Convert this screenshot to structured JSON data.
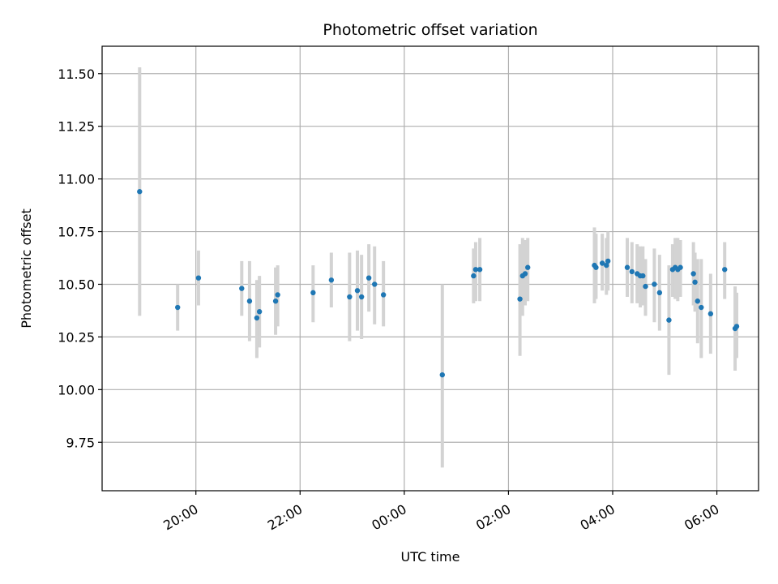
{
  "chart_data": {
    "type": "scatter",
    "title": "Photometric offset variation",
    "xlabel": "UTC time",
    "ylabel": "Photometric offset",
    "x_unit": "hours",
    "xlim": [
      -5.8,
      6.8
    ],
    "ylim": [
      9.52,
      11.63
    ],
    "x_ticks": [
      {
        "value": -4,
        "label": "20:00"
      },
      {
        "value": -2,
        "label": "22:00"
      },
      {
        "value": 0,
        "label": "00:00"
      },
      {
        "value": 2,
        "label": "02:00"
      },
      {
        "value": 4,
        "label": "04:00"
      },
      {
        "value": 6,
        "label": "06:00"
      }
    ],
    "y_ticks": [
      {
        "value": 9.75,
        "label": "9.75"
      },
      {
        "value": 10.0,
        "label": "10.00"
      },
      {
        "value": 10.25,
        "label": "10.25"
      },
      {
        "value": 10.5,
        "label": "10.50"
      },
      {
        "value": 10.75,
        "label": "10.75"
      },
      {
        "value": 11.0,
        "label": "11.00"
      },
      {
        "value": 11.25,
        "label": "11.25"
      },
      {
        "value": 11.5,
        "label": "11.50"
      }
    ],
    "grid": true,
    "point_color": "#1f77b4",
    "errorbar_color": "#d3d3d3",
    "points": [
      {
        "x": -5.08,
        "y": 10.94,
        "low": 10.35,
        "high": 11.53
      },
      {
        "x": -4.35,
        "y": 10.39,
        "low": 10.28,
        "high": 10.5
      },
      {
        "x": -3.95,
        "y": 10.53,
        "low": 10.4,
        "high": 10.66
      },
      {
        "x": -3.12,
        "y": 10.48,
        "low": 10.35,
        "high": 10.61
      },
      {
        "x": -2.97,
        "y": 10.42,
        "low": 10.23,
        "high": 10.61
      },
      {
        "x": -2.83,
        "y": 10.34,
        "low": 10.15,
        "high": 10.52
      },
      {
        "x": -2.78,
        "y": 10.37,
        "low": 10.2,
        "high": 10.54
      },
      {
        "x": -2.47,
        "y": 10.42,
        "low": 10.26,
        "high": 10.58
      },
      {
        "x": -2.43,
        "y": 10.45,
        "low": 10.3,
        "high": 10.59
      },
      {
        "x": -1.75,
        "y": 10.46,
        "low": 10.32,
        "high": 10.59
      },
      {
        "x": -1.4,
        "y": 10.52,
        "low": 10.39,
        "high": 10.65
      },
      {
        "x": -1.05,
        "y": 10.44,
        "low": 10.23,
        "high": 10.65
      },
      {
        "x": -0.9,
        "y": 10.47,
        "low": 10.28,
        "high": 10.66
      },
      {
        "x": -0.82,
        "y": 10.44,
        "low": 10.24,
        "high": 10.64
      },
      {
        "x": -0.68,
        "y": 10.53,
        "low": 10.37,
        "high": 10.69
      },
      {
        "x": -0.57,
        "y": 10.5,
        "low": 10.31,
        "high": 10.68
      },
      {
        "x": -0.4,
        "y": 10.45,
        "low": 10.3,
        "high": 10.61
      },
      {
        "x": 0.73,
        "y": 10.07,
        "low": 9.63,
        "high": 10.5
      },
      {
        "x": 1.33,
        "y": 10.54,
        "low": 10.41,
        "high": 10.67
      },
      {
        "x": 1.37,
        "y": 10.57,
        "low": 10.42,
        "high": 10.7
      },
      {
        "x": 1.45,
        "y": 10.57,
        "low": 10.42,
        "high": 10.72
      },
      {
        "x": 2.22,
        "y": 10.43,
        "low": 10.16,
        "high": 10.69
      },
      {
        "x": 2.27,
        "y": 10.54,
        "low": 10.35,
        "high": 10.72
      },
      {
        "x": 2.32,
        "y": 10.55,
        "low": 10.4,
        "high": 10.71
      },
      {
        "x": 2.37,
        "y": 10.58,
        "low": 10.42,
        "high": 10.72
      },
      {
        "x": 3.65,
        "y": 10.59,
        "low": 10.41,
        "high": 10.77
      },
      {
        "x": 3.68,
        "y": 10.58,
        "low": 10.43,
        "high": 10.74
      },
      {
        "x": 3.8,
        "y": 10.6,
        "low": 10.47,
        "high": 10.74
      },
      {
        "x": 3.88,
        "y": 10.59,
        "low": 10.45,
        "high": 10.72
      },
      {
        "x": 3.91,
        "y": 10.61,
        "low": 10.47,
        "high": 10.75
      },
      {
        "x": 4.28,
        "y": 10.58,
        "low": 10.44,
        "high": 10.72
      },
      {
        "x": 4.37,
        "y": 10.56,
        "low": 10.41,
        "high": 10.7
      },
      {
        "x": 4.47,
        "y": 10.55,
        "low": 10.41,
        "high": 10.69
      },
      {
        "x": 4.53,
        "y": 10.54,
        "low": 10.39,
        "high": 10.68
      },
      {
        "x": 4.58,
        "y": 10.54,
        "low": 10.4,
        "high": 10.68
      },
      {
        "x": 4.63,
        "y": 10.49,
        "low": 10.35,
        "high": 10.62
      },
      {
        "x": 4.8,
        "y": 10.5,
        "low": 10.32,
        "high": 10.67
      },
      {
        "x": 4.9,
        "y": 10.46,
        "low": 10.28,
        "high": 10.64
      },
      {
        "x": 5.08,
        "y": 10.33,
        "low": 10.07,
        "high": 10.59
      },
      {
        "x": 5.15,
        "y": 10.57,
        "low": 10.44,
        "high": 10.69
      },
      {
        "x": 5.2,
        "y": 10.58,
        "low": 10.43,
        "high": 10.72
      },
      {
        "x": 5.25,
        "y": 10.57,
        "low": 10.42,
        "high": 10.72
      },
      {
        "x": 5.3,
        "y": 10.58,
        "low": 10.44,
        "high": 10.71
      },
      {
        "x": 5.55,
        "y": 10.55,
        "low": 10.4,
        "high": 10.7
      },
      {
        "x": 5.58,
        "y": 10.51,
        "low": 10.37,
        "high": 10.65
      },
      {
        "x": 5.63,
        "y": 10.42,
        "low": 10.22,
        "high": 10.62
      },
      {
        "x": 5.7,
        "y": 10.39,
        "low": 10.15,
        "high": 10.62
      },
      {
        "x": 5.88,
        "y": 10.36,
        "low": 10.17,
        "high": 10.55
      },
      {
        "x": 6.15,
        "y": 10.57,
        "low": 10.43,
        "high": 10.7
      },
      {
        "x": 6.35,
        "y": 10.29,
        "low": 10.09,
        "high": 10.49
      },
      {
        "x": 6.38,
        "y": 10.3,
        "low": 10.15,
        "high": 10.46
      }
    ]
  }
}
